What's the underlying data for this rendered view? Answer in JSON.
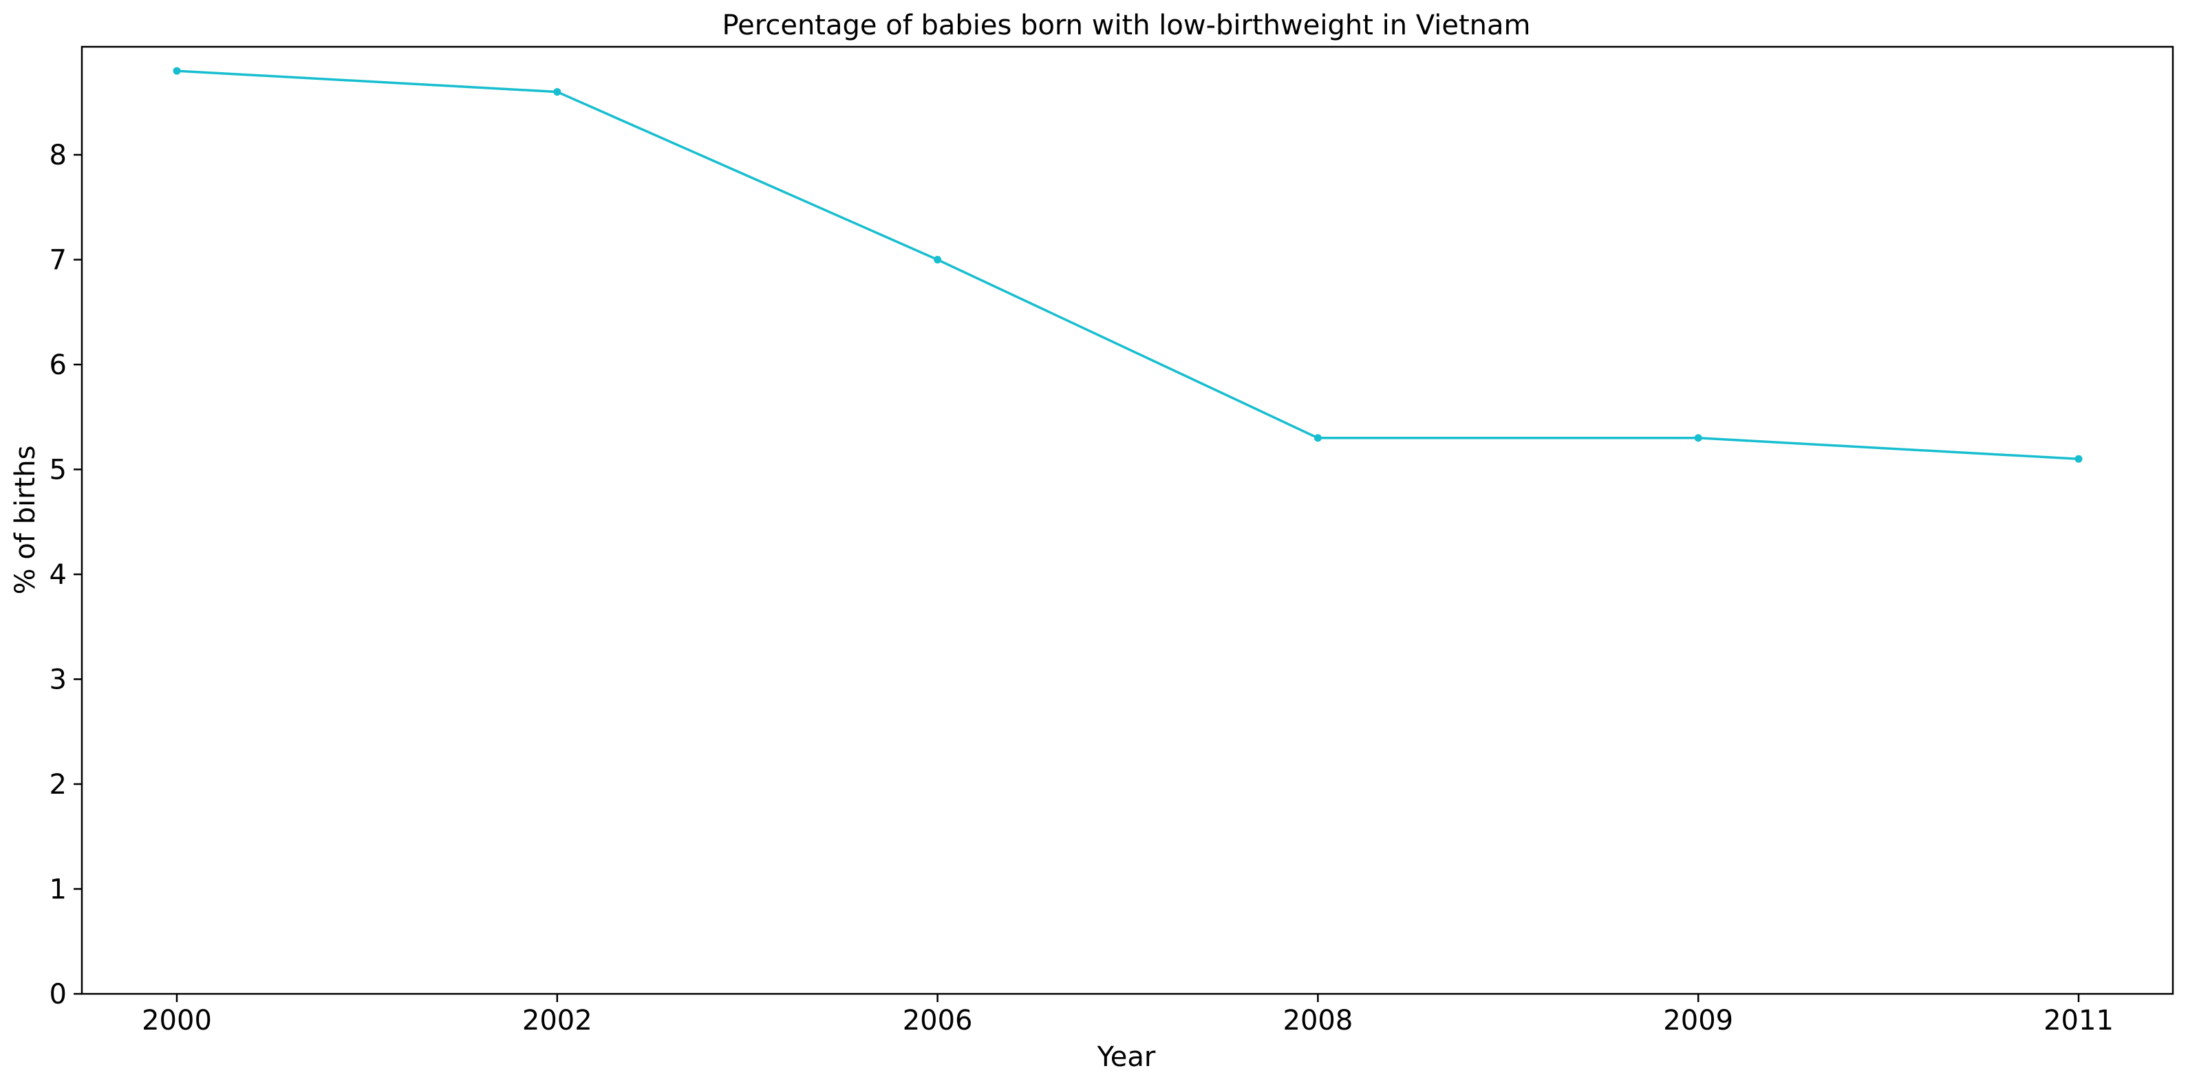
{
  "chart_data": {
    "type": "line",
    "title": "Percentage of babies born with low-birthweight in Vietnam",
    "xlabel": "Year",
    "ylabel": "% of births",
    "categories": [
      "2000",
      "2002",
      "2006",
      "2008",
      "2009",
      "2011"
    ],
    "series": [
      {
        "values": [
          8.8,
          8.6,
          7.0,
          5.3,
          5.3,
          5.1
        ],
        "color": "#17becf"
      }
    ],
    "yticks": [
      "0",
      "1",
      "2",
      "3",
      "4",
      "5",
      "6",
      "7",
      "8"
    ],
    "ylim": [
      0,
      9.03
    ],
    "grid": false,
    "legend": "none"
  }
}
